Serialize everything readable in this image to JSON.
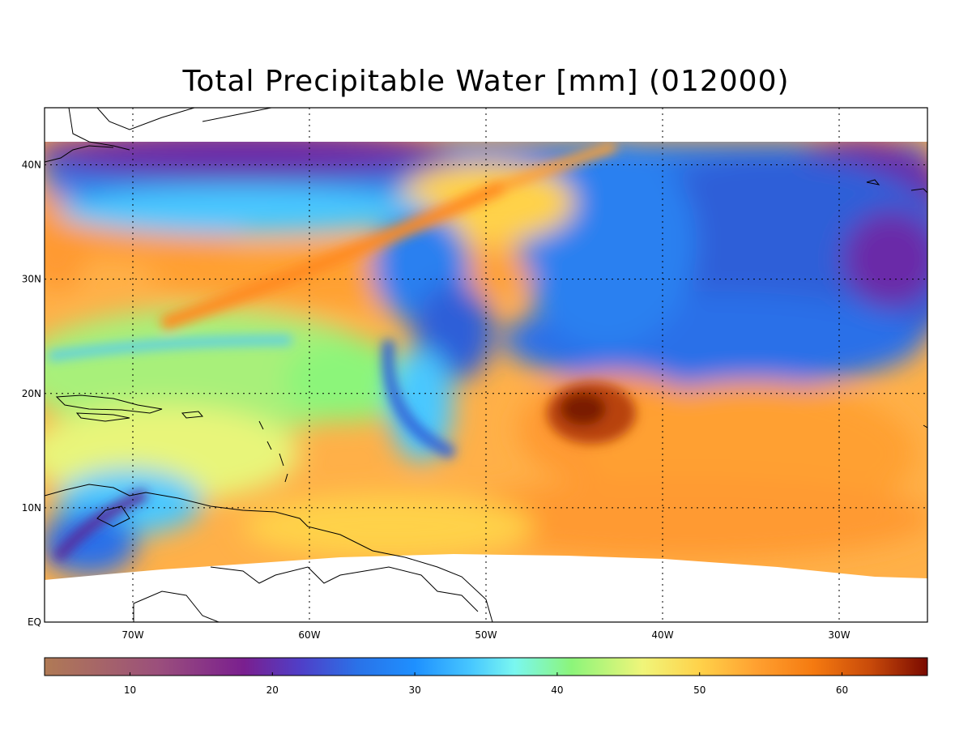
{
  "map": {
    "title": "Total Precipitable Water [mm]  (012000)",
    "variable": "Total Precipitable Water",
    "units": "mm",
    "lon_range": [
      -75,
      -25
    ],
    "lat_range": [
      0,
      45
    ],
    "data_extent_lat_max": 42,
    "lon_ticks": [
      {
        "value": -70,
        "label": "70W"
      },
      {
        "value": -60,
        "label": "60W"
      },
      {
        "value": -50,
        "label": "50W"
      },
      {
        "value": -40,
        "label": "40W"
      },
      {
        "value": -30,
        "label": "30W"
      }
    ],
    "lat_ticks": [
      {
        "value": 0,
        "label": "EQ"
      },
      {
        "value": 10,
        "label": "10N"
      },
      {
        "value": 20,
        "label": "20N"
      },
      {
        "value": 30,
        "label": "30N"
      },
      {
        "value": 40,
        "label": "40N"
      }
    ],
    "gridlines": "dotted"
  },
  "colorbar": {
    "min": 4,
    "max": 66,
    "ticks": [
      10,
      20,
      30,
      40,
      50,
      60
    ],
    "stops": [
      {
        "v": 4,
        "color": "#b07a55"
      },
      {
        "v": 12,
        "color": "#9b4f7c"
      },
      {
        "v": 18,
        "color": "#7a1f8f"
      },
      {
        "v": 22,
        "color": "#4f3fc8"
      },
      {
        "v": 26,
        "color": "#2a72e8"
      },
      {
        "v": 30,
        "color": "#1e90ff"
      },
      {
        "v": 34,
        "color": "#48c8ff"
      },
      {
        "v": 37,
        "color": "#7af7f0"
      },
      {
        "v": 41,
        "color": "#8cf57a"
      },
      {
        "v": 46,
        "color": "#f0f57a"
      },
      {
        "v": 50,
        "color": "#ffd24a"
      },
      {
        "v": 54,
        "color": "#ffa030"
      },
      {
        "v": 58,
        "color": "#f57a10"
      },
      {
        "v": 62,
        "color": "#c84a0a"
      },
      {
        "v": 66,
        "color": "#7a0a00"
      }
    ]
  }
}
